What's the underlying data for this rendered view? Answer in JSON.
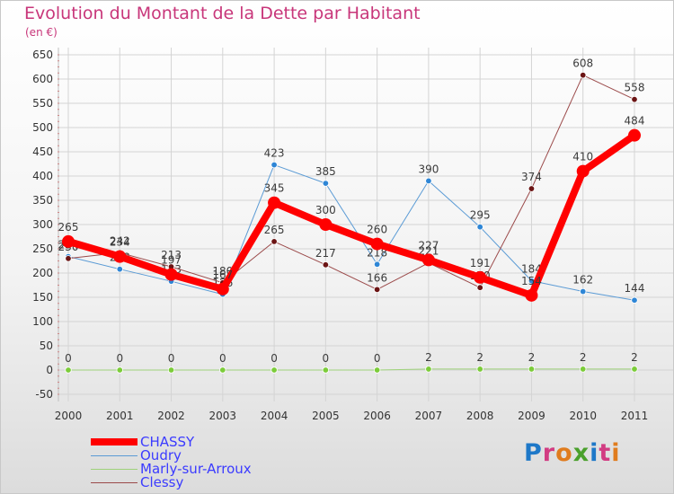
{
  "title": "Evolution du Montant de la Dette par Habitant",
  "unit_label": "(en €)",
  "brand": {
    "text": "Proxiti",
    "letter_colors": [
      "#1e78c8",
      "#d23c82",
      "#e07c1e",
      "#4aa02c",
      "#1e78c8",
      "#d23c82",
      "#e07c1e"
    ]
  },
  "chart_data": {
    "type": "line",
    "x": [
      "2000",
      "2001",
      "2002",
      "2003",
      "2004",
      "2005",
      "2006",
      "2007",
      "2008",
      "2009",
      "2010",
      "2011"
    ],
    "ylim": [
      -50,
      650
    ],
    "yticks": [
      -50,
      0,
      50,
      100,
      150,
      200,
      250,
      300,
      350,
      400,
      450,
      500,
      550,
      600,
      650
    ],
    "grid": true,
    "legend_position": "bottom-left",
    "series": [
      {
        "name": "Oudry",
        "color": "#5b9bd5",
        "marker_color": "#2e86d6",
        "line_width": 1,
        "values": [
          234,
          208,
          183,
          156,
          423,
          385,
          218,
          390,
          295,
          184,
          162,
          144
        ],
        "labels": [
          "234",
          "208",
          "183",
          "156",
          "423",
          "385",
          "218",
          "390",
          "295",
          "184",
          "162",
          "144"
        ]
      },
      {
        "name": "Marly-sur-Arroux",
        "color": "#9ed27a",
        "marker_color": "#7ccc3a",
        "line_width": 1,
        "values": [
          0,
          0,
          0,
          0,
          0,
          0,
          0,
          2,
          2,
          2,
          2,
          2
        ],
        "labels": [
          "0",
          "0",
          "0",
          "0",
          "0",
          "0",
          "0",
          "2",
          "2",
          "2",
          "2",
          "2"
        ]
      },
      {
        "name": "Clessy",
        "color": "#9b4a4a",
        "marker_color": "#6b1414",
        "line_width": 1,
        "values": [
          230,
          242,
          213,
          180,
          265,
          217,
          166,
          221,
          170,
          374,
          608,
          558
        ],
        "labels": [
          "230",
          "242",
          "213",
          "180",
          "265",
          "217",
          "166",
          "221",
          "170",
          "374",
          "608",
          "558"
        ]
      },
      {
        "name": "CHASSY",
        "color": "#ff0000",
        "marker_color": "#ff0000",
        "line_width": 8,
        "values": [
          265,
          234,
          197,
          167,
          345,
          300,
          260,
          227,
          191,
          154,
          410,
          484
        ],
        "labels": [
          "265",
          "234",
          "197",
          "167",
          "345",
          "300",
          "260",
          "227",
          "191",
          "154",
          "410",
          "484"
        ]
      }
    ]
  },
  "legend": [
    {
      "label": "CHASSY",
      "color": "#ff0000",
      "thickness": 8
    },
    {
      "label": "Oudry",
      "color": "#5b9bd5",
      "thickness": 1
    },
    {
      "label": "Marly-sur-Arroux",
      "color": "#9ed27a",
      "thickness": 1
    },
    {
      "label": "Clessy",
      "color": "#9b4a4a",
      "thickness": 1
    }
  ]
}
